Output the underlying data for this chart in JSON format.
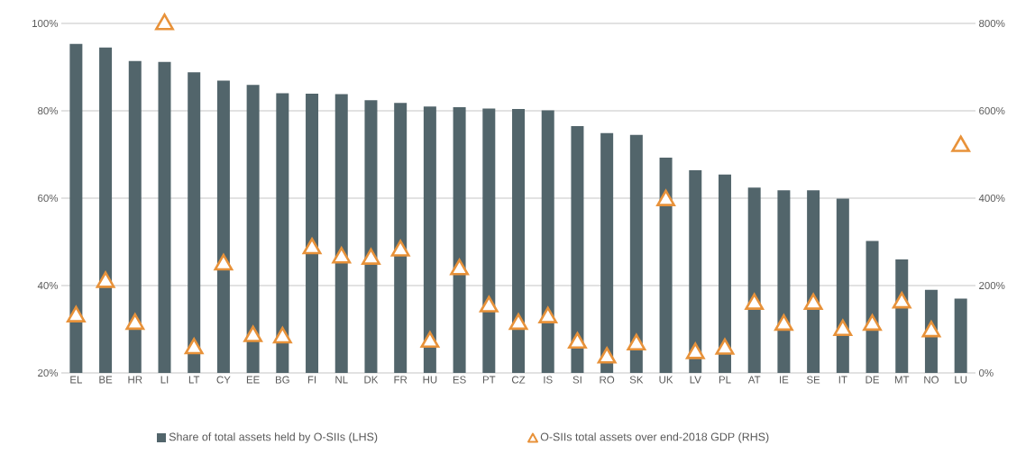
{
  "chart_data": {
    "type": "bar",
    "categories": [
      "EL",
      "BE",
      "HR",
      "LI",
      "LT",
      "CY",
      "EE",
      "BG",
      "FI",
      "NL",
      "DK",
      "FR",
      "HU",
      "ES",
      "PT",
      "CZ",
      "IS",
      "SI",
      "RO",
      "SK",
      "UK",
      "LV",
      "PL",
      "AT",
      "IE",
      "SE",
      "IT",
      "DE",
      "MT",
      "NO",
      "LU"
    ],
    "series": [
      {
        "name": "Share of total assets held by O-SIIs (LHS)",
        "color": "#52656b",
        "values": [
          95.3,
          94.5,
          91.4,
          91.2,
          88.8,
          86.9,
          85.9,
          84.0,
          83.9,
          83.8,
          82.4,
          81.8,
          81.0,
          80.8,
          80.5,
          80.4,
          80.1,
          76.5,
          74.9,
          74.5,
          69.3,
          66.4,
          65.4,
          62.4,
          61.8,
          61.8,
          59.9,
          50.2,
          46.0,
          39.0,
          37.0
        ]
      },
      {
        "name": "O-SIIs total assets over end-2018 GDP (RHS)",
        "type": "scatter",
        "axis": "y2",
        "color": "#e8923a",
        "marker": "triangle",
        "values": [
          129,
          208,
          112,
          798,
          56,
          248,
          84,
          81,
          285,
          264,
          261,
          280,
          71,
          237,
          152,
          112,
          127,
          69,
          35,
          65,
          395,
          45,
          55,
          158,
          110,
          158,
          98,
          110,
          161,
          95,
          519
        ]
      }
    ],
    "ylim": [
      20,
      100
    ],
    "yticks": [
      {
        "value": 20,
        "label": "20%"
      },
      {
        "value": 40,
        "label": "40%"
      },
      {
        "value": 60,
        "label": "60%"
      },
      {
        "value": 80,
        "label": "80%"
      },
      {
        "value": 100,
        "label": "100%"
      }
    ],
    "y2lim": [
      0,
      800
    ],
    "y2ticks": [
      {
        "value": 0,
        "label": "0%"
      },
      {
        "value": 200,
        "label": "200%"
      },
      {
        "value": 400,
        "label": "400%"
      },
      {
        "value": 600,
        "label": "600%"
      },
      {
        "value": 800,
        "label": "800%"
      }
    ],
    "grid": "y",
    "legend": "bottom"
  }
}
